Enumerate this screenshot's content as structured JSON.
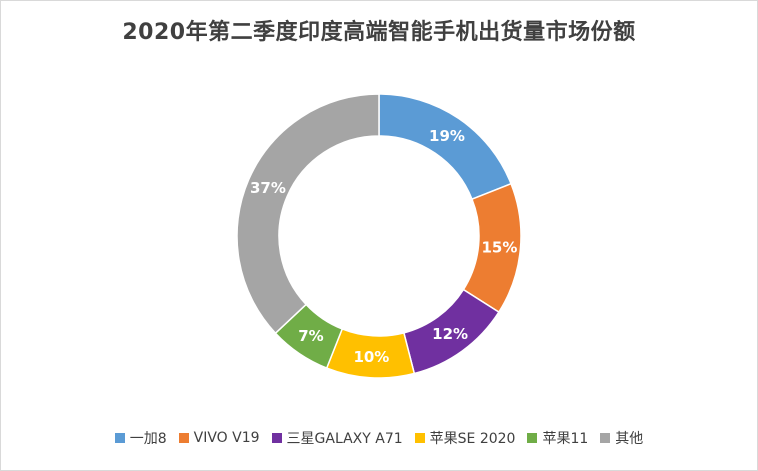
{
  "chart_data": {
    "type": "pie",
    "variant": "doughnut",
    "title": "2020年第二季度印度高端智能手机出货量市场份额",
    "categories": [
      "一加8",
      "VIVO V19",
      "三星GALAXY A71",
      "苹果SE 2020",
      "苹果11",
      "其他"
    ],
    "values": [
      19,
      15,
      12,
      10,
      7,
      37
    ],
    "labels": [
      "19%",
      "15%",
      "12%",
      "10%",
      "7%",
      "37%"
    ],
    "colors": [
      "#5b9bd5",
      "#ed7d31",
      "#7030a0",
      "#ffc000",
      "#70ad47",
      "#a5a5a5"
    ],
    "legend": "bottom"
  }
}
